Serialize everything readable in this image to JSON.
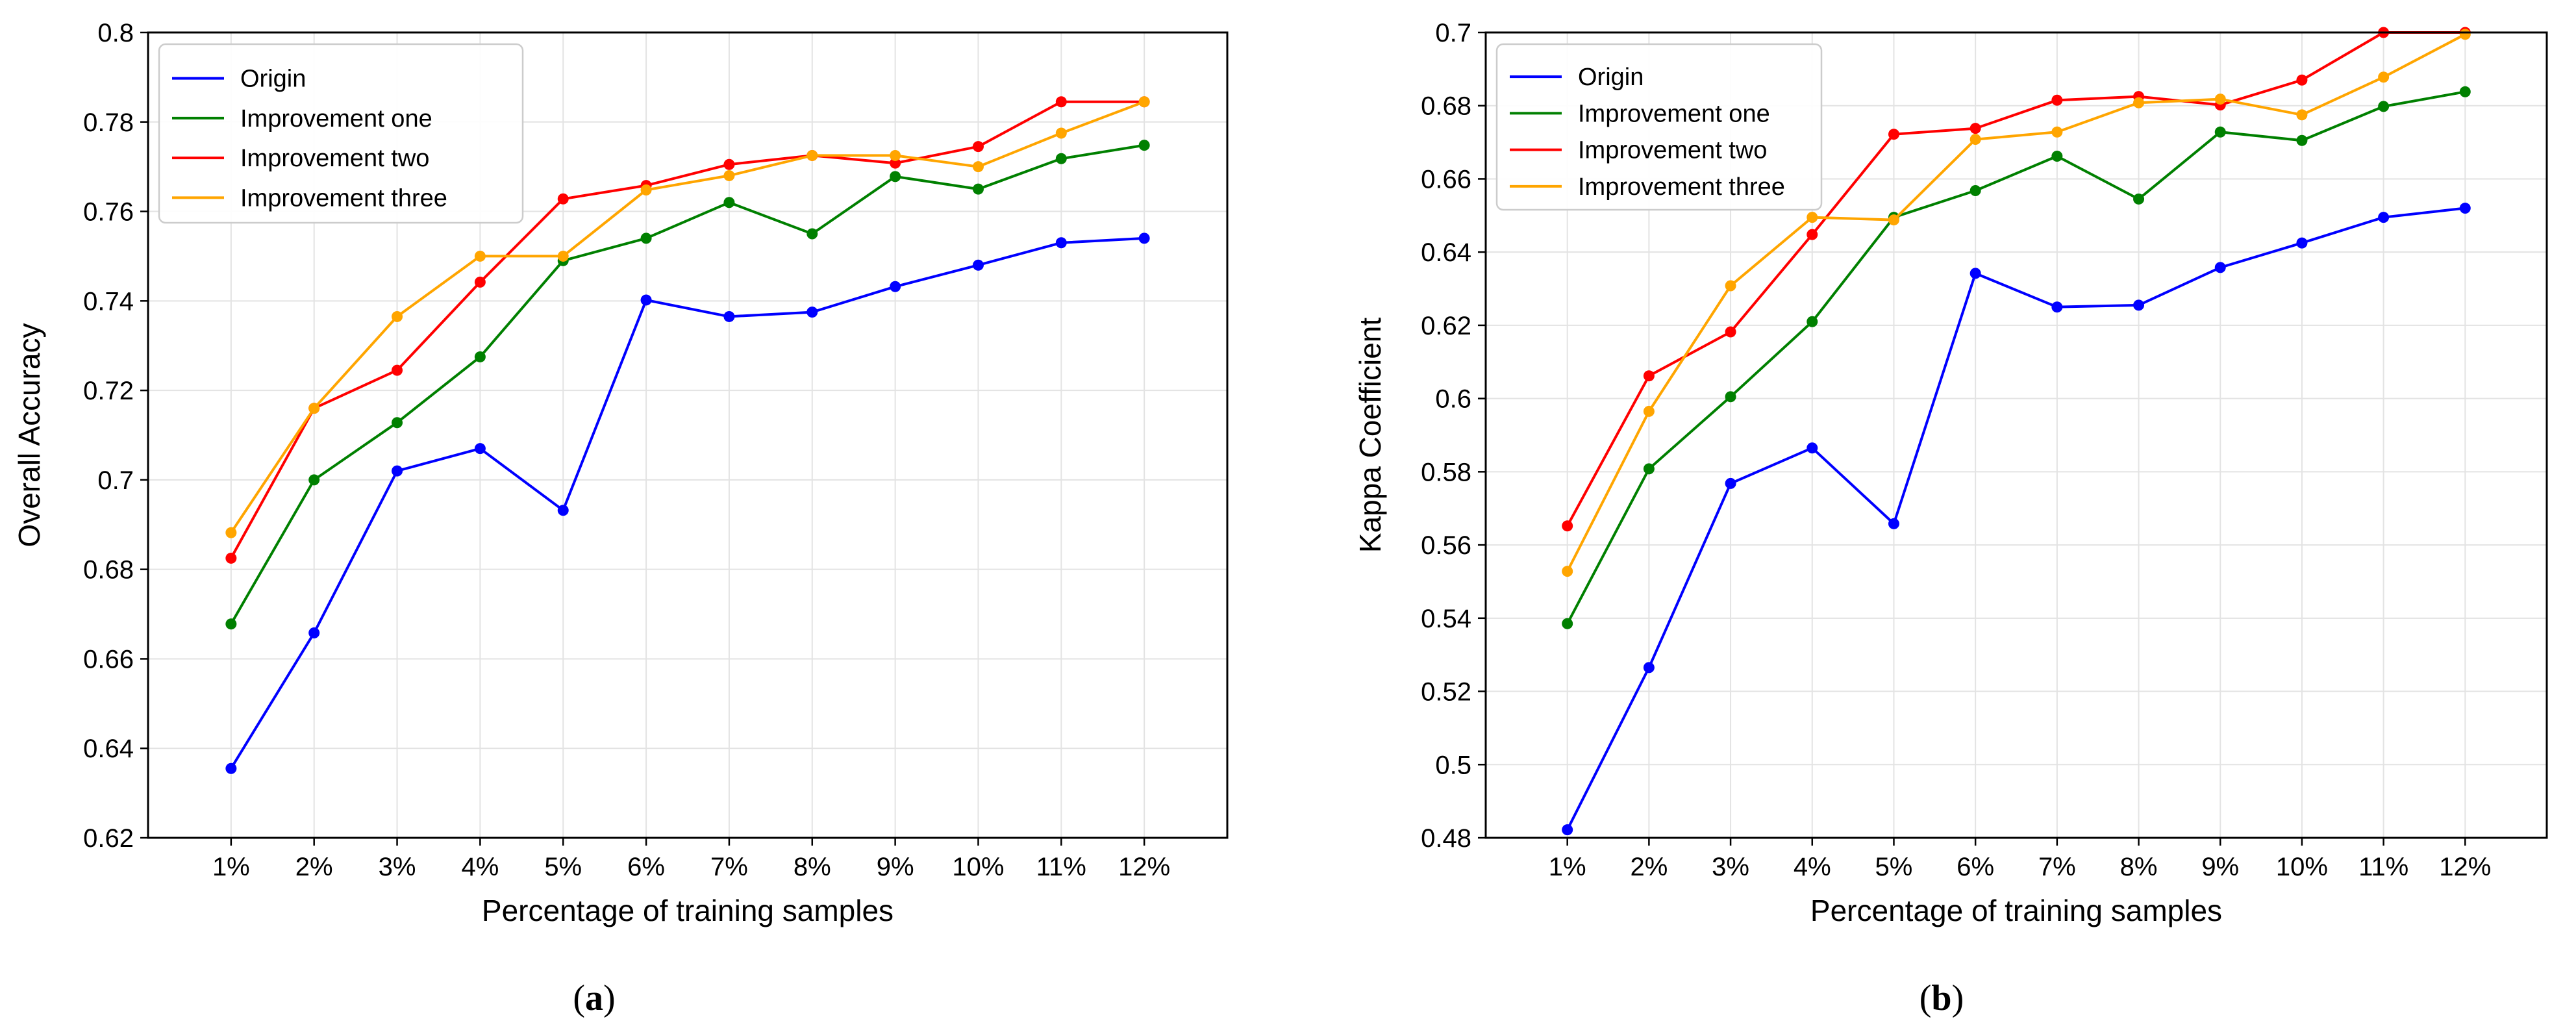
{
  "chart_data": [
    {
      "type": "line",
      "id": "a",
      "caption": {
        "open": "(",
        "letter": "a",
        "close": ")"
      },
      "xlabel": "Percentage of training samples",
      "ylabel": "Overall Accuracy",
      "categories": [
        "1%",
        "2%",
        "3%",
        "4%",
        "5%",
        "6%",
        "7%",
        "8%",
        "9%",
        "10%",
        "11%",
        "12%"
      ],
      "ylim": [
        0.62,
        0.8
      ],
      "yticks": [
        0.62,
        0.64,
        0.66,
        0.68,
        0.7,
        0.72,
        0.74,
        0.76,
        0.78,
        0.8
      ],
      "ytick_labels": [
        "0.62",
        "0.64",
        "0.66",
        "0.68",
        "0.7",
        "0.72",
        "0.74",
        "0.76",
        "0.78",
        "0.8"
      ],
      "grid": true,
      "legend_position": "top-left",
      "series": [
        {
          "name": "Origin",
          "color": "#0000ff",
          "values": [
            0.6355,
            0.6658,
            0.702,
            0.707,
            0.6932,
            0.7402,
            0.7365,
            0.7375,
            0.7432,
            0.748,
            0.753,
            0.754
          ]
        },
        {
          "name": "Improvement one",
          "color": "#008000",
          "values": [
            0.6678,
            0.7,
            0.7128,
            0.7275,
            0.749,
            0.754,
            0.762,
            0.755,
            0.7678,
            0.765,
            0.7718,
            0.7748
          ]
        },
        {
          "name": "Improvement two",
          "color": "#ff0000",
          "values": [
            0.6825,
            0.716,
            0.7245,
            0.7442,
            0.7628,
            0.7658,
            0.7705,
            0.7725,
            0.7708,
            0.7745,
            0.7845,
            0.7845
          ]
        },
        {
          "name": "Improvement three",
          "color": "#ffa500",
          "values": [
            0.6882,
            0.716,
            0.7365,
            0.75,
            0.75,
            0.7648,
            0.768,
            0.7725,
            0.7725,
            0.77,
            0.7775,
            0.7845
          ]
        }
      ]
    },
    {
      "type": "line",
      "id": "b",
      "caption": {
        "open": "(",
        "letter": "b",
        "close": ")"
      },
      "xlabel": "Percentage of training samples",
      "ylabel": "Kappa Coefficient",
      "categories": [
        "1%",
        "2%",
        "3%",
        "4%",
        "5%",
        "6%",
        "7%",
        "8%",
        "9%",
        "10%",
        "11%",
        "12%"
      ],
      "ylim": [
        0.48,
        0.7
      ],
      "yticks": [
        0.48,
        0.5,
        0.52,
        0.54,
        0.56,
        0.58,
        0.6,
        0.62,
        0.64,
        0.66,
        0.68,
        0.7
      ],
      "ytick_labels": [
        "0.48",
        "0.5",
        "0.52",
        "0.54",
        "0.56",
        "0.58",
        "0.6",
        "0.62",
        "0.64",
        "0.66",
        "0.68",
        "0.7"
      ],
      "grid": true,
      "legend_position": "top-left",
      "series": [
        {
          "name": "Origin",
          "color": "#0000ff",
          "values": [
            0.4822,
            0.5265,
            0.5768,
            0.5865,
            0.5658,
            0.6342,
            0.625,
            0.6255,
            0.6358,
            0.6425,
            0.6495,
            0.652
          ]
        },
        {
          "name": "Improvement one",
          "color": "#008000",
          "values": [
            0.5385,
            0.5808,
            0.6005,
            0.621,
            0.6495,
            0.6568,
            0.6662,
            0.6545,
            0.6728,
            0.6705,
            0.6798,
            0.6838
          ]
        },
        {
          "name": "Improvement two",
          "color": "#ff0000",
          "values": [
            0.5652,
            0.6062,
            0.6182,
            0.6448,
            0.6722,
            0.6738,
            0.6815,
            0.6825,
            0.6802,
            0.687,
            0.7,
            0.7
          ]
        },
        {
          "name": "Improvement three",
          "color": "#ffa500",
          "values": [
            0.5528,
            0.5965,
            0.6308,
            0.6495,
            0.6488,
            0.6708,
            0.6728,
            0.6808,
            0.6818,
            0.6775,
            0.6878,
            0.6995
          ]
        }
      ]
    }
  ]
}
